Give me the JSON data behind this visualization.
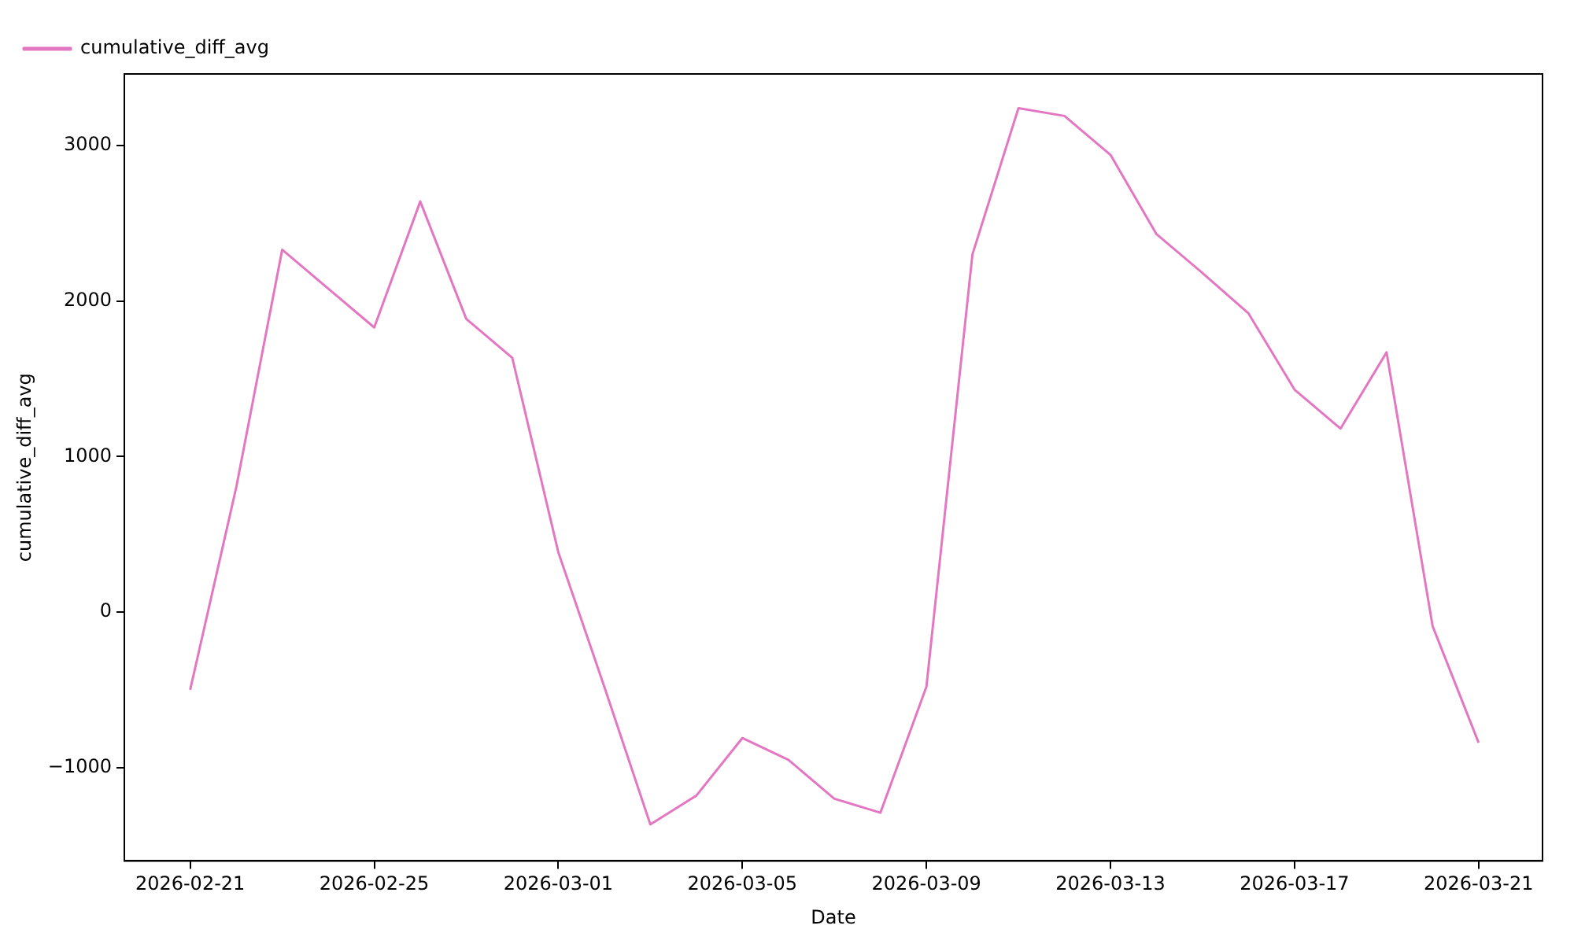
{
  "chart_data": {
    "type": "line",
    "xlabel": "Date",
    "ylabel": "cumulative_diff_avg",
    "x": [
      "2026-02-21",
      "2026-02-22",
      "2026-02-23",
      "2026-02-24",
      "2026-02-25",
      "2026-02-26",
      "2026-02-27",
      "2026-02-28",
      "2026-03-01",
      "2026-03-02",
      "2026-03-03",
      "2026-03-04",
      "2026-03-05",
      "2026-03-06",
      "2026-03-07",
      "2026-03-08",
      "2026-03-09",
      "2026-03-10",
      "2026-03-11",
      "2026-03-12",
      "2026-03-13",
      "2026-03-14",
      "2026-03-15",
      "2026-03-16",
      "2026-03-17",
      "2026-03-18",
      "2026-03-19",
      "2026-03-20",
      "2026-03-21"
    ],
    "series": [
      {
        "name": "cumulative_diff_avg",
        "color": "#e377c2",
        "values": [
          -500,
          800,
          2330,
          2080,
          1830,
          2640,
          1885,
          1635,
          385,
          -480,
          -1365,
          -1180,
          -810,
          -950,
          -1200,
          -1290,
          -480,
          2300,
          3240,
          3190,
          2940,
          2430,
          2180,
          1920,
          1430,
          1180,
          1670,
          -90,
          -840
        ]
      }
    ],
    "xlim": [
      "2026-02-19T13:40",
      "2026-03-22T09:20"
    ],
    "xticks": [
      "2026-02-21",
      "2026-02-25",
      "2026-03-01",
      "2026-03-05",
      "2026-03-09",
      "2026-03-13",
      "2026-03-17",
      "2026-03-21"
    ],
    "ylim": [
      -1600,
      3460
    ],
    "yticks": [
      {
        "value": -1000,
        "label": "−1000"
      },
      0,
      1000,
      2000,
      3000
    ],
    "grid": false,
    "legend": "top left",
    "marker": "none",
    "line_style": "solid"
  }
}
